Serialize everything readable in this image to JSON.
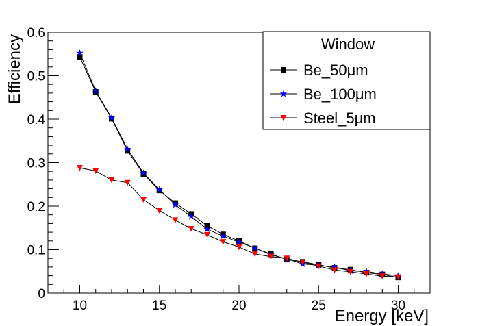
{
  "chart_data": {
    "type": "line",
    "title": "",
    "xlabel": "Energy [keV]",
    "ylabel": "Efficiency",
    "xlim": [
      8,
      32
    ],
    "ylim": [
      0,
      0.6
    ],
    "xticks": [
      10,
      15,
      20,
      25,
      30
    ],
    "xtick_labels": [
      "10",
      "15",
      "20",
      "25",
      "30"
    ],
    "yticks": [
      0,
      0.1,
      0.2,
      0.3,
      0.4,
      0.5,
      0.6
    ],
    "ytick_labels": [
      "0",
      "0.1",
      "0.2",
      "0.3",
      "0.4",
      "0.5",
      "0.6"
    ],
    "grid": false,
    "legend": {
      "title": "Window",
      "position": "top-right"
    },
    "x": [
      10,
      11,
      12,
      13,
      14,
      15,
      16,
      17,
      18,
      19,
      20,
      21,
      22,
      23,
      24,
      25,
      26,
      27,
      28,
      29,
      30
    ],
    "series": [
      {
        "name": "Be_50μm",
        "marker": "square",
        "color": "#000000",
        "values": [
          0.543,
          0.463,
          0.401,
          0.327,
          0.274,
          0.236,
          0.207,
          0.182,
          0.155,
          0.135,
          0.12,
          0.103,
          0.09,
          0.077,
          0.072,
          0.065,
          0.058,
          0.054,
          0.047,
          0.043,
          0.036
        ]
      },
      {
        "name": "Be_100μm",
        "marker": "star",
        "color": "#0000ff",
        "values": [
          0.552,
          0.465,
          0.403,
          0.331,
          0.276,
          0.238,
          0.203,
          0.176,
          0.147,
          0.131,
          0.117,
          0.104,
          0.088,
          0.079,
          0.067,
          0.064,
          0.06,
          0.051,
          0.05,
          0.044,
          0.04
        ]
      },
      {
        "name": "Steel_5μm",
        "marker": "triangle-down",
        "color": "#ff0000",
        "values": [
          0.288,
          0.281,
          0.26,
          0.254,
          0.215,
          0.19,
          0.168,
          0.148,
          0.134,
          0.118,
          0.106,
          0.09,
          0.084,
          0.08,
          0.071,
          0.062,
          0.053,
          0.049,
          0.044,
          0.039,
          0.037
        ]
      }
    ]
  }
}
